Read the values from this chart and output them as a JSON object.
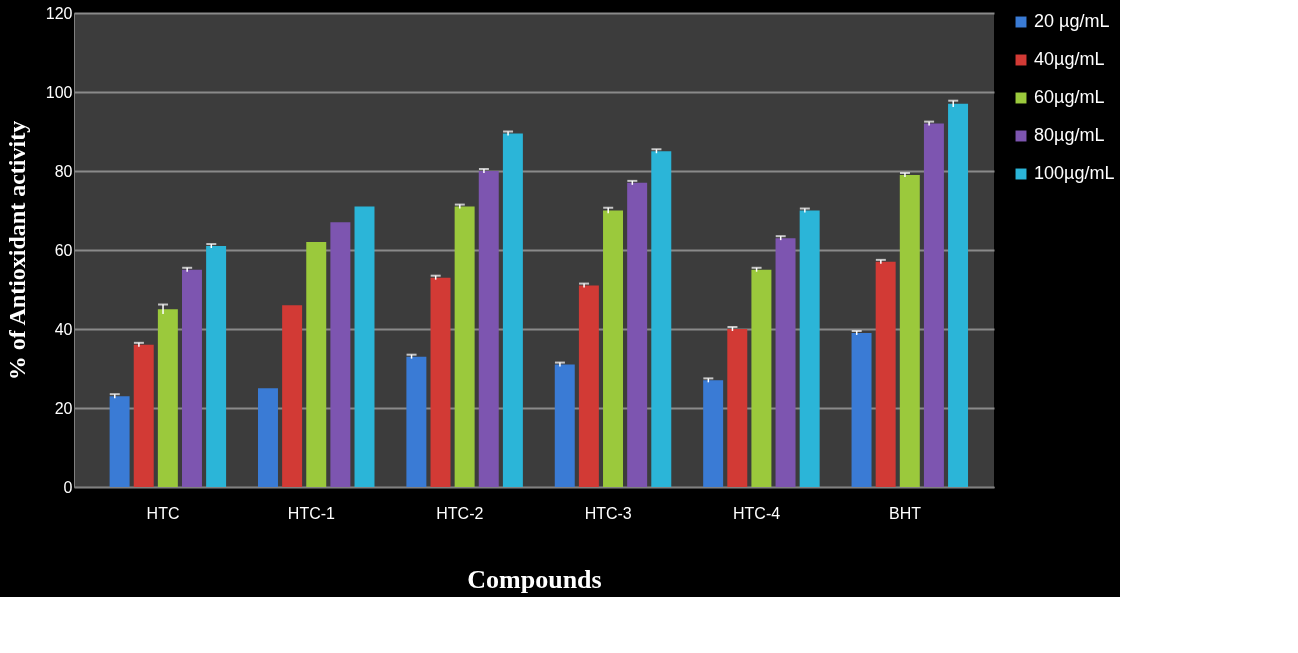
{
  "chart_data": {
    "type": "bar",
    "xlabel": "Compounds",
    "ylabel": "% of Antioxidant activity",
    "categories": [
      "HTC",
      "HTC-1",
      "HTC-2",
      "HTC-3",
      "HTC-4",
      "BHT"
    ],
    "series": [
      {
        "name": "20 µg/mL",
        "color": "#3a7bd5",
        "values": [
          23,
          25,
          33,
          31,
          27,
          39
        ],
        "errors": [
          0.5,
          null,
          0.5,
          0.5,
          0.5,
          0.5
        ]
      },
      {
        "name": "40µg/mL",
        "color": "#d23a35",
        "values": [
          36,
          46,
          53,
          51,
          40,
          57
        ],
        "errors": [
          0.5,
          null,
          0.5,
          0.5,
          0.5,
          0.5
        ]
      },
      {
        "name": "60µg/mL",
        "color": "#9bc93c",
        "values": [
          45,
          62,
          71,
          70,
          55,
          79
        ],
        "errors": [
          1.2,
          null,
          0.5,
          0.7,
          0.5,
          0.5
        ]
      },
      {
        "name": "80µg/mL",
        "color": "#7d55b0",
        "values": [
          55,
          67,
          80,
          77,
          63,
          92
        ],
        "errors": [
          0.5,
          null,
          0.5,
          0.5,
          0.5,
          0.5
        ]
      },
      {
        "name": "100µg/mL",
        "color": "#2bb5d8",
        "values": [
          61,
          71,
          89.5,
          85,
          70,
          97
        ],
        "errors": [
          0.5,
          null,
          0.5,
          0.5,
          0.5,
          0.8
        ]
      }
    ],
    "ylim": [
      0,
      120
    ],
    "yticks": [
      0,
      20,
      40,
      60,
      80,
      100,
      120
    ],
    "grid": "y",
    "legend": "right"
  }
}
